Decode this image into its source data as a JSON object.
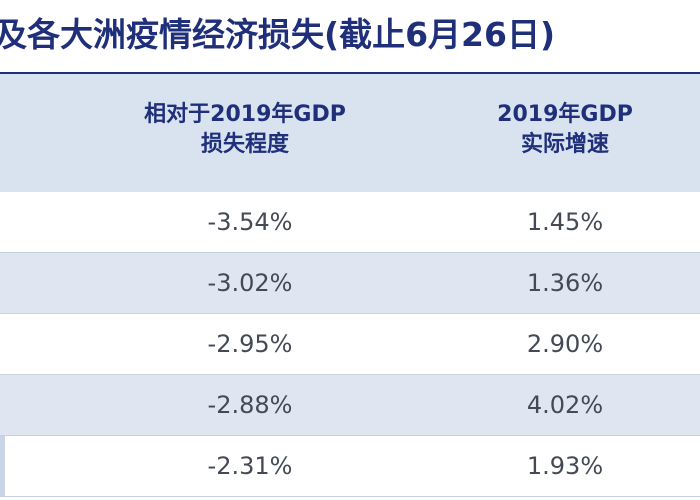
{
  "title": "及各大洲疫情经济损失(截止6月26日)",
  "chart_data": {
    "type": "table",
    "columns": [
      {
        "label_line1": "相对于2019年GDP",
        "label_line2": "损失程度"
      },
      {
        "label_line1": "2019年GDP",
        "label_line2": "实际增速"
      }
    ],
    "rows": [
      {
        "loss": "-3.54%",
        "growth": "1.45%"
      },
      {
        "loss": "-3.02%",
        "growth": "1.36%"
      },
      {
        "loss": "-2.95%",
        "growth": "2.90%"
      },
      {
        "loss": "-2.88%",
        "growth": "4.02%"
      },
      {
        "loss": "-2.31%",
        "growth": "1.93%"
      }
    ]
  }
}
